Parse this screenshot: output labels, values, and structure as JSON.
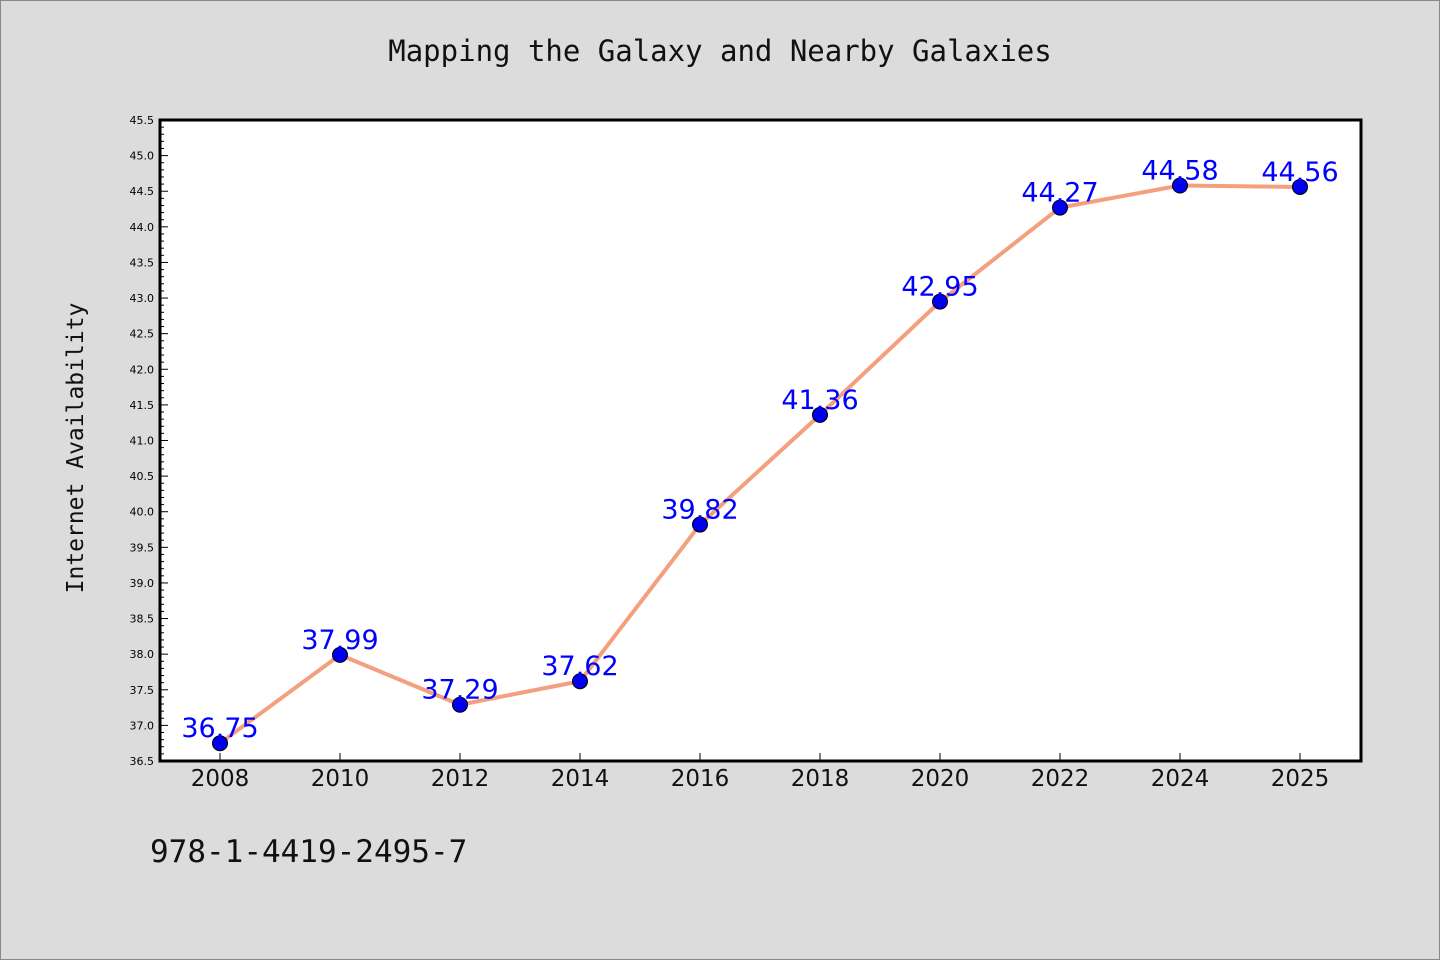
{
  "chart_data": {
    "type": "line",
    "title": "Mapping the Galaxy and Nearby Galaxies",
    "ylabel": "Internet Availability",
    "xlabel": "",
    "x": [
      "2008",
      "2010",
      "2012",
      "2014",
      "2016",
      "2018",
      "2020",
      "2022",
      "2024",
      "2025"
    ],
    "series": [
      {
        "values": [
          36.75,
          37.99,
          37.29,
          37.62,
          39.82,
          41.36,
          42.95,
          44.27,
          44.58,
          44.56
        ],
        "labels": [
          "36.75",
          "37.99",
          "37.29",
          "37.62",
          "39.82",
          "41.36",
          "42.95",
          "44.27",
          "44.58",
          "44.56"
        ]
      }
    ],
    "ylim": [
      36.5,
      45.5
    ],
    "yticks": [
      "36.5",
      "37.0",
      "37.5",
      "38.0",
      "38.5",
      "39.0",
      "39.5",
      "40.0",
      "40.5",
      "41.0",
      "41.5",
      "42.0",
      "42.5",
      "43.0",
      "43.5",
      "44.0",
      "44.5",
      "45.0",
      "45.5"
    ],
    "grid": false,
    "colors": {
      "line": "#f4a07e",
      "marker": "#0000ee",
      "data_label": "#0000ff",
      "background": "#dcdcdc",
      "plot_background": "#ffffff"
    }
  },
  "footer": {
    "isbn": "978-1-4419-2495-7"
  }
}
